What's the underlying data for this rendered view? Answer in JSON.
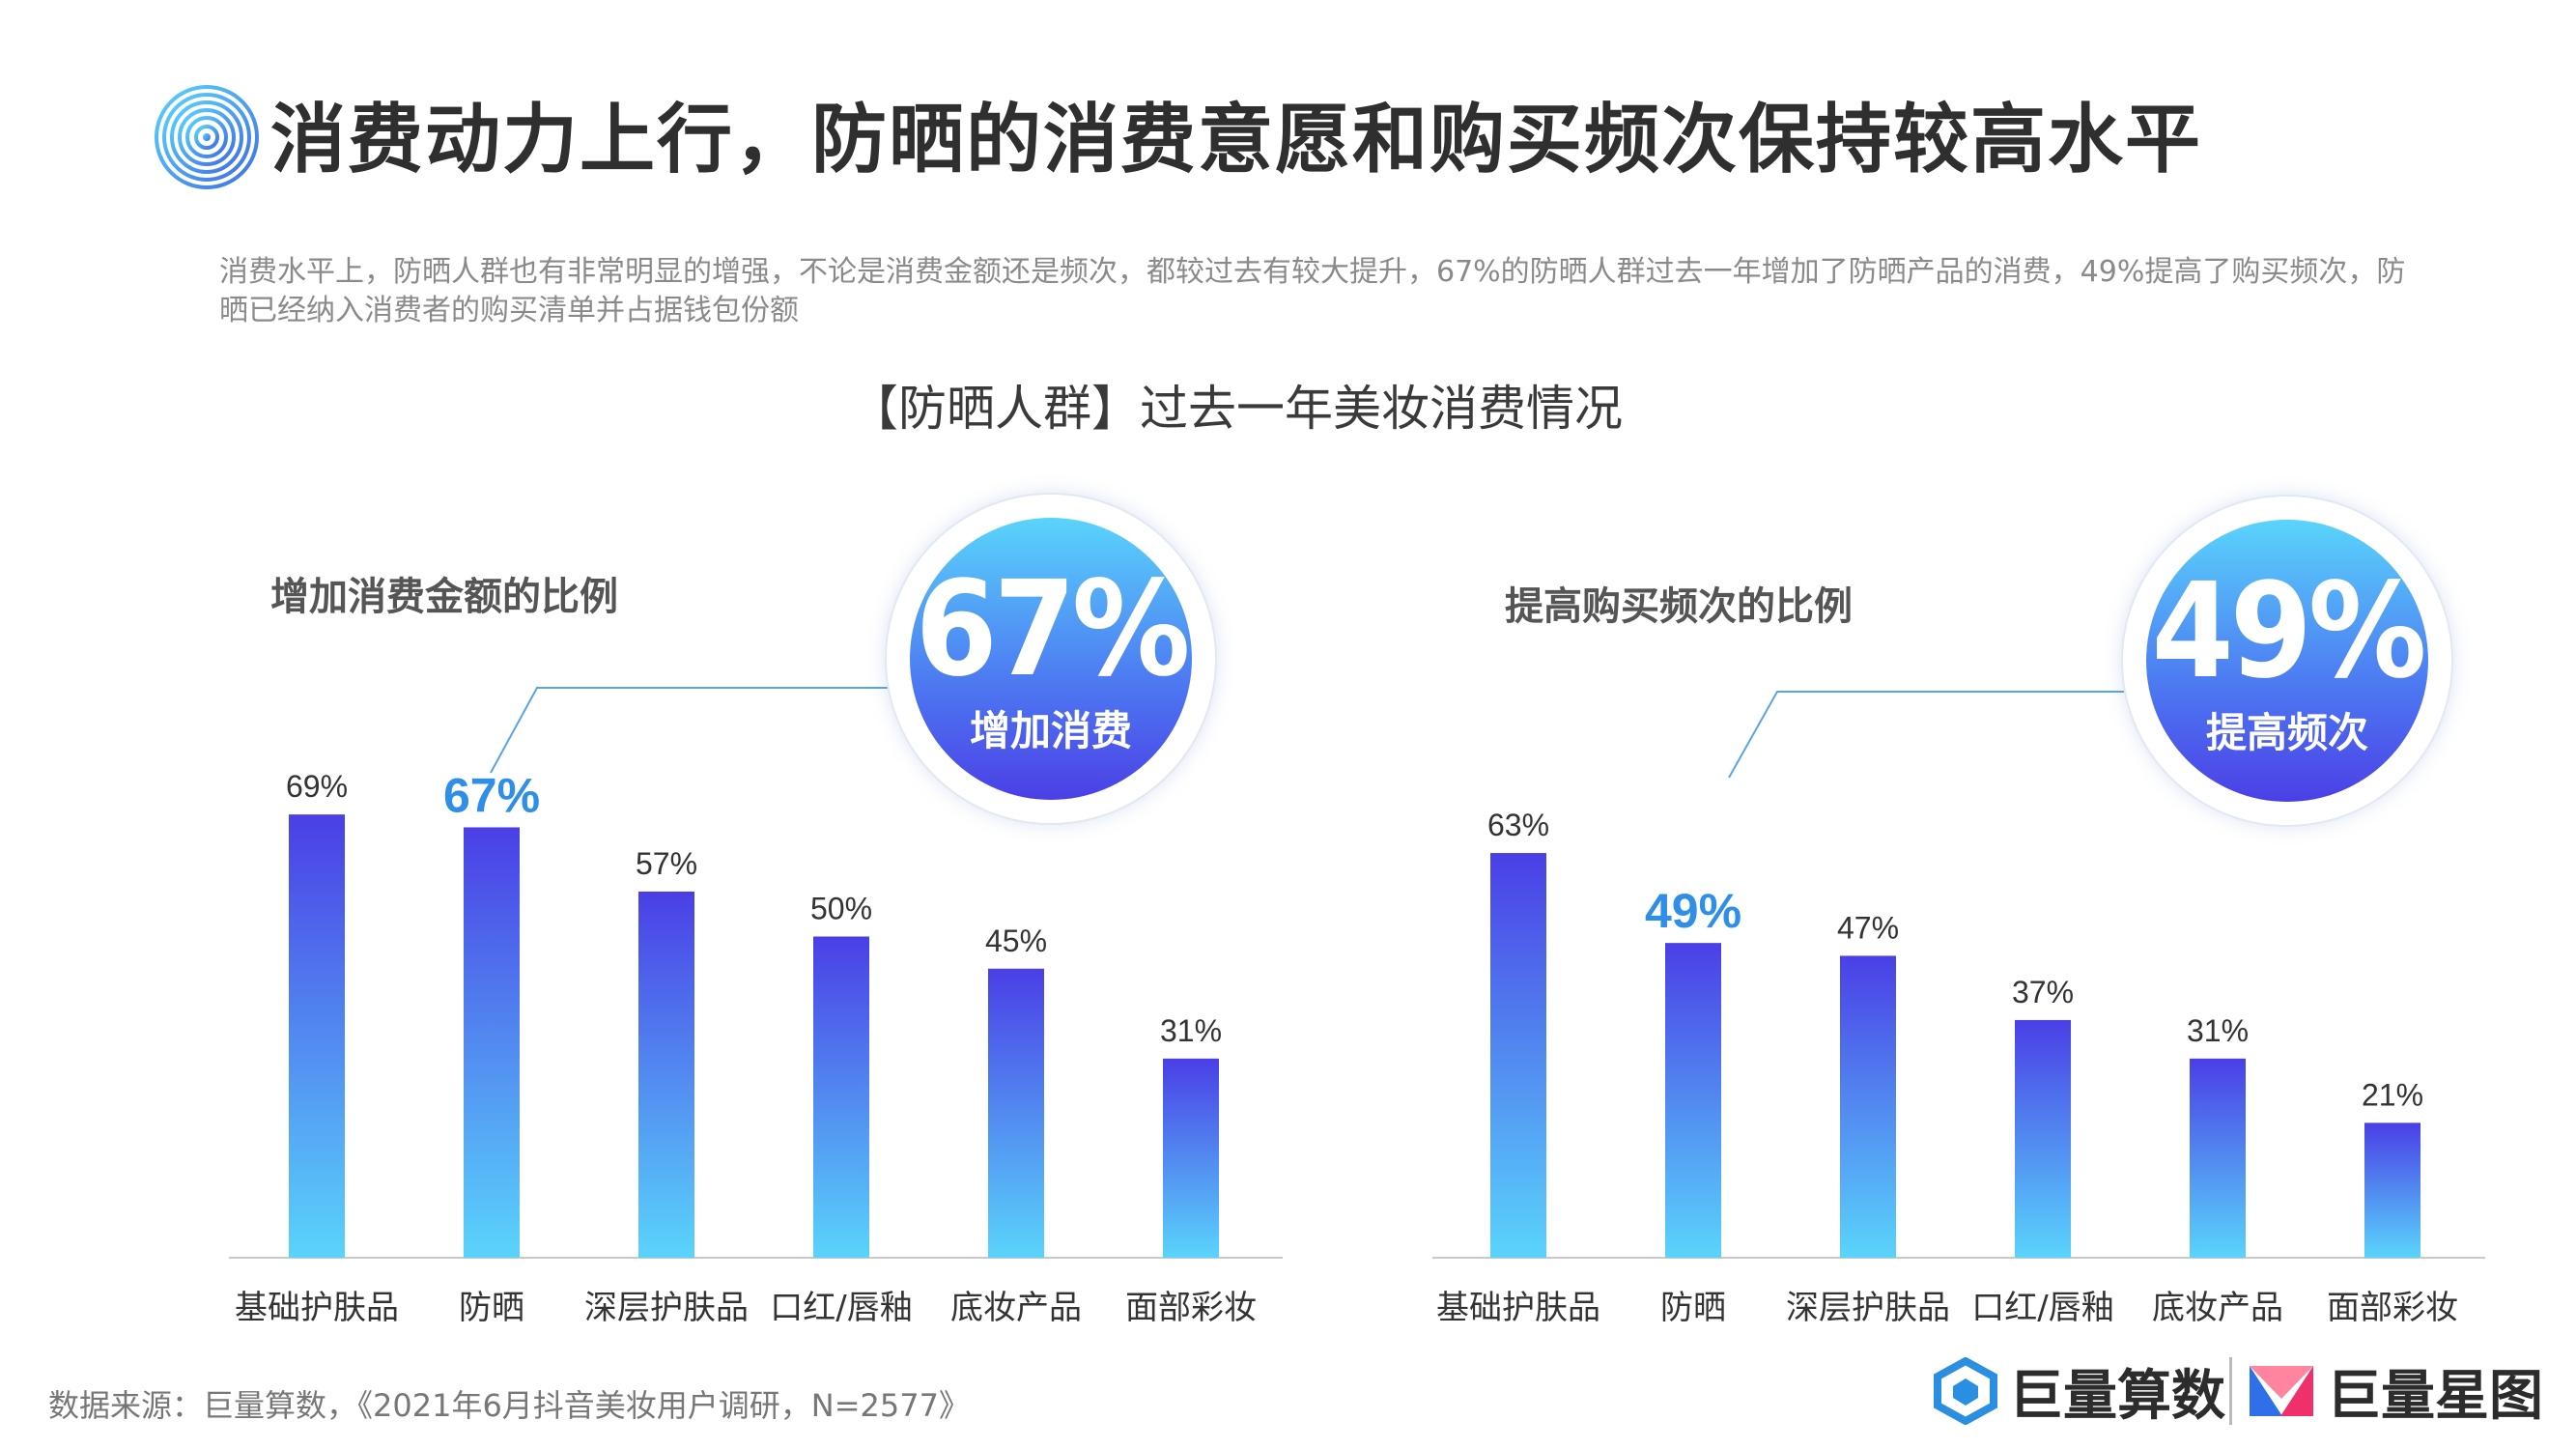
{
  "page_title": "消费动力上行，防晒的消费意愿和购买频次保持较高水平",
  "description": "消费水平上，防晒人群也有非常明显的增强，不论是消费金额还是频次，都较过去有较大提升，67%的防晒人群过去一年增加了防晒产品的消费，49%提高了购买频次，防晒已经纳入消费者的购买清单并占据钱包份额",
  "section_title": "【防晒人群】过去一年美妆消费情况",
  "badges": [
    {
      "value": "67%",
      "label": "增加消费"
    },
    {
      "value": "49%",
      "label": "提高频次"
    }
  ],
  "source": "数据来源：巨量算数，《2021年6月抖音美妆用户调研，N=2577》",
  "brands": {
    "left": "巨量算数",
    "right": "巨量星图"
  },
  "colors": {
    "bar_top": "#4a3fe6",
    "bar_bottom": "#5ad4fb",
    "highlight": "#2f8fe8",
    "axis": "#c8c8c8",
    "label": "#333333"
  },
  "chart_data": [
    {
      "type": "bar",
      "title": "增加消费金额的比例",
      "categories": [
        "基础护肤品",
        "防晒",
        "深层护肤品",
        "口红/唇釉",
        "底妆产品",
        "面部彩妆"
      ],
      "values": [
        69,
        67,
        57,
        50,
        45,
        31
      ],
      "value_labels": [
        "69%",
        "67%",
        "57%",
        "50%",
        "45%",
        "31%"
      ],
      "highlight_index": 1,
      "unit": "%",
      "ylim": [
        0,
        100
      ],
      "grid": false,
      "legend": "none"
    },
    {
      "type": "bar",
      "title": "提高购买频次的比例",
      "categories": [
        "基础护肤品",
        "防晒",
        "深层护肤品",
        "口红/唇釉",
        "底妆产品",
        "面部彩妆"
      ],
      "values": [
        63,
        49,
        47,
        37,
        31,
        21
      ],
      "value_labels": [
        "63%",
        "49%",
        "47%",
        "37%",
        "31%",
        "21%"
      ],
      "highlight_index": 1,
      "unit": "%",
      "ylim": [
        0,
        100
      ],
      "grid": false,
      "legend": "none"
    }
  ]
}
